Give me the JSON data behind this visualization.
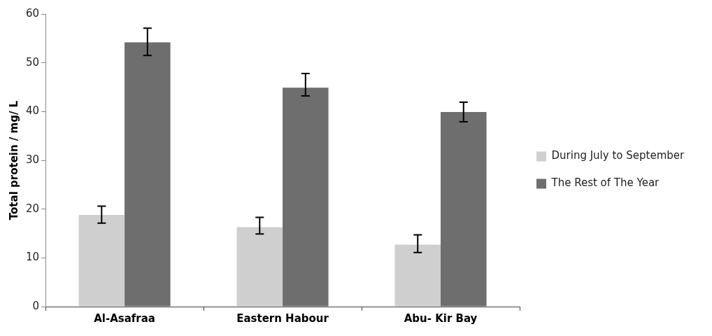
{
  "chart_data": {
    "type": "bar",
    "ylabel": "Total protein / mg/ L",
    "categories": [
      "Al-Asafraa",
      "Eastern Habour",
      "Abu- Kir Bay"
    ],
    "series": [
      {
        "name": "During July to September",
        "color": "#cfcfcf",
        "values": [
          18.8,
          16.3,
          12.7
        ],
        "errors": [
          [
            17.1,
            20.6
          ],
          [
            14.9,
            18.3
          ],
          [
            11.1,
            14.7
          ]
        ]
      },
      {
        "name": "The Rest of The Year",
        "color": "#6e6e6e",
        "values": [
          54.2,
          44.9,
          39.9
        ],
        "errors": [
          [
            51.5,
            57.1
          ],
          [
            43.2,
            47.8
          ],
          [
            37.9,
            41.9
          ]
        ]
      }
    ],
    "ylim": [
      0,
      60
    ],
    "yticks": [
      0,
      10,
      20,
      30,
      40,
      50,
      60
    ],
    "grid": false,
    "legend": "right"
  }
}
